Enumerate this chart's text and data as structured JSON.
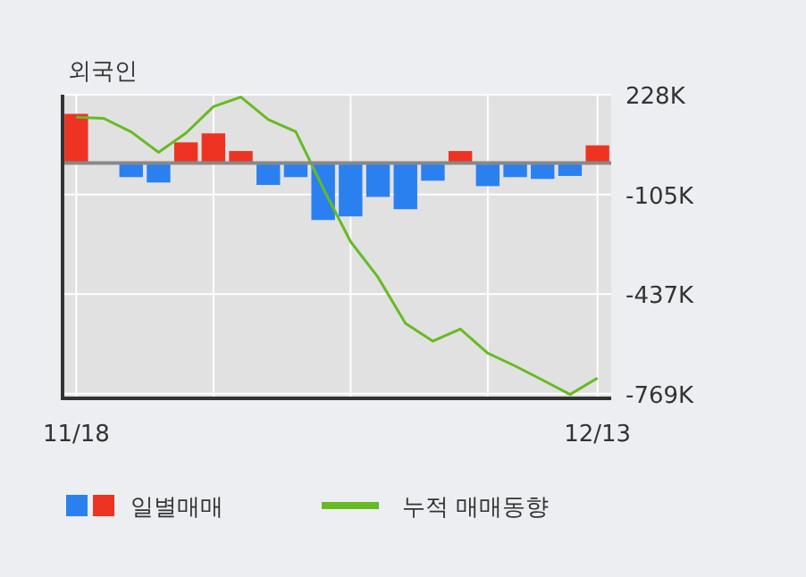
{
  "chart_data": {
    "type": "bar",
    "title": "외국인",
    "categories": [
      "11/18",
      null,
      null,
      null,
      null,
      null,
      null,
      null,
      null,
      null,
      null,
      null,
      null,
      null,
      null,
      null,
      null,
      null,
      null,
      "12/13"
    ],
    "series": [
      {
        "name": "일별매매",
        "colors": [
          "#ee3322",
          "#ee3322",
          "#2b80f0",
          "#2b80f0",
          "#ee3322",
          "#ee3322",
          "#ee3322",
          "#2b80f0",
          "#2b80f0",
          "#2b80f0",
          "#2b80f0",
          "#2b80f0",
          "#2b80f0",
          "#2b80f0",
          "#ee3322",
          "#2b80f0",
          "#2b80f0",
          "#2b80f0",
          "#2b80f0",
          "#ee3322"
        ],
        "values": [
          164,
          0,
          -47,
          -65,
          69,
          99,
          40,
          -73,
          -47,
          -190,
          -178,
          -113,
          -154,
          -59,
          40,
          -77,
          -47,
          -53,
          -43,
          59
        ]
      },
      {
        "type": "line",
        "name": "누적 매매동향",
        "color": "#66bb22",
        "values": [
          153,
          149,
          104,
          36,
          100,
          188,
          220,
          145,
          105,
          -84,
          -262,
          -381,
          -535,
          -594,
          -554,
          -634,
          -677,
          -724,
          -772,
          -717
        ]
      }
    ],
    "ylim": [
      -785,
      228
    ],
    "yticks": [
      {
        "value": 228,
        "label": "228K"
      },
      {
        "value": -105,
        "label": "-105K"
      },
      {
        "value": -437,
        "label": "-437K"
      },
      {
        "value": -769,
        "label": "-769K"
      }
    ],
    "ref_lines": [
      {
        "axis": "y",
        "value": 0,
        "color": "#888888"
      }
    ],
    "grid": true,
    "legend": "bottom"
  }
}
